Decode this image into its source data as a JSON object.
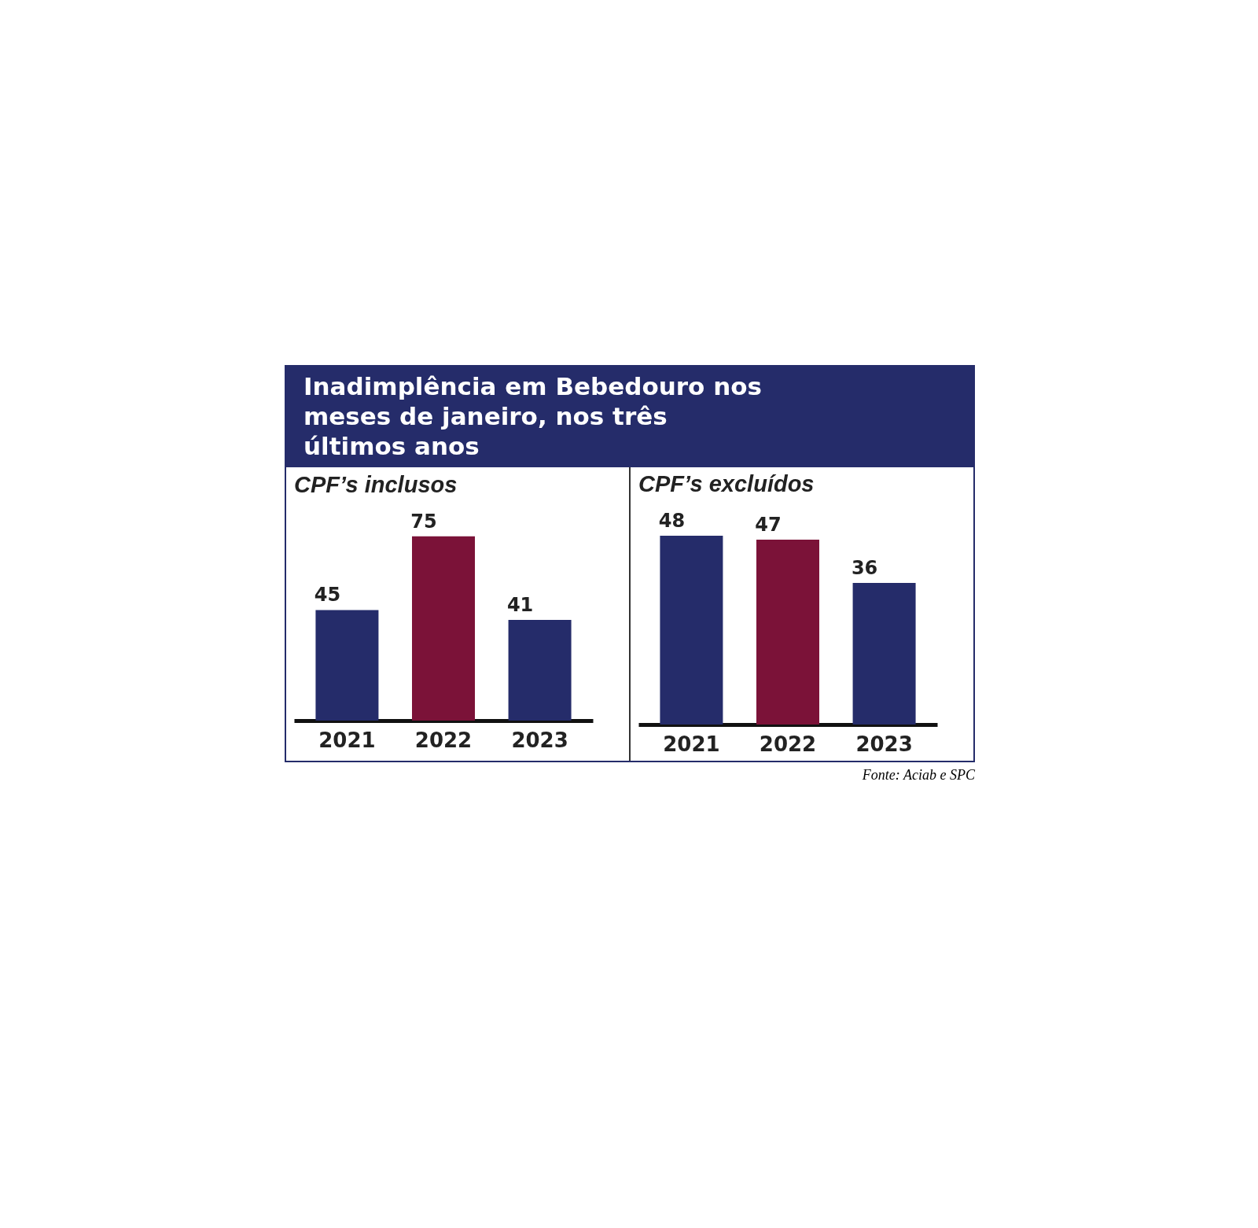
{
  "chart_data": [
    {
      "type": "bar",
      "title": "Inadimplência em Bebedouro nos meses de janeiro, nos três últimos anos",
      "subtitle": "CPF’s inclusos",
      "categories": [
        "2021",
        "2022",
        "2023"
      ],
      "values": [
        45,
        75,
        41
      ],
      "colors": [
        "#252c6a",
        "#7b1238",
        "#252c6a"
      ],
      "data_labels": true
    },
    {
      "type": "bar",
      "subtitle": "CPF’s excluídos",
      "categories": [
        "2021",
        "2022",
        "2023"
      ],
      "values": [
        48,
        47,
        36
      ],
      "colors": [
        "#252c6a",
        "#7b1238",
        "#252c6a"
      ],
      "data_labels": true,
      "annotations": [
        "Fonte: Aciab e SPC"
      ]
    }
  ]
}
